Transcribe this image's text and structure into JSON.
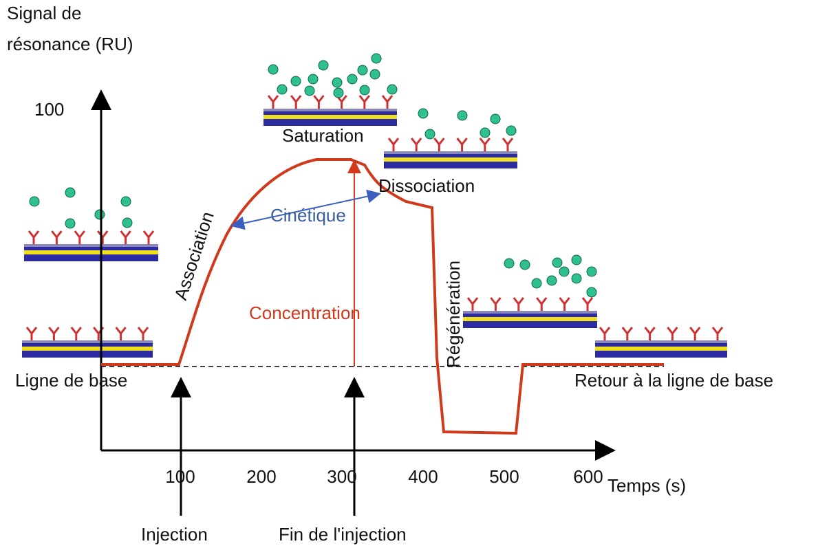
{
  "axis": {
    "y_title_line1": "Signal de",
    "y_title_line2": "résonance (RU)",
    "y_tick": "100",
    "x_ticks": [
      "100",
      "200",
      "300",
      "400",
      "500",
      "600"
    ],
    "x_title": "Temps (s)"
  },
  "labels": {
    "baseline": "Ligne de base",
    "return": "Retour à la ligne de base",
    "injection": "Injection",
    "end_injection": "Fin de l'injection",
    "saturation": "Saturation",
    "dissociation": "Dissociation",
    "kinetics": "Cinétique",
    "concentration": "Concentration",
    "association": "Association",
    "regeneration": "Régénération"
  }
}
